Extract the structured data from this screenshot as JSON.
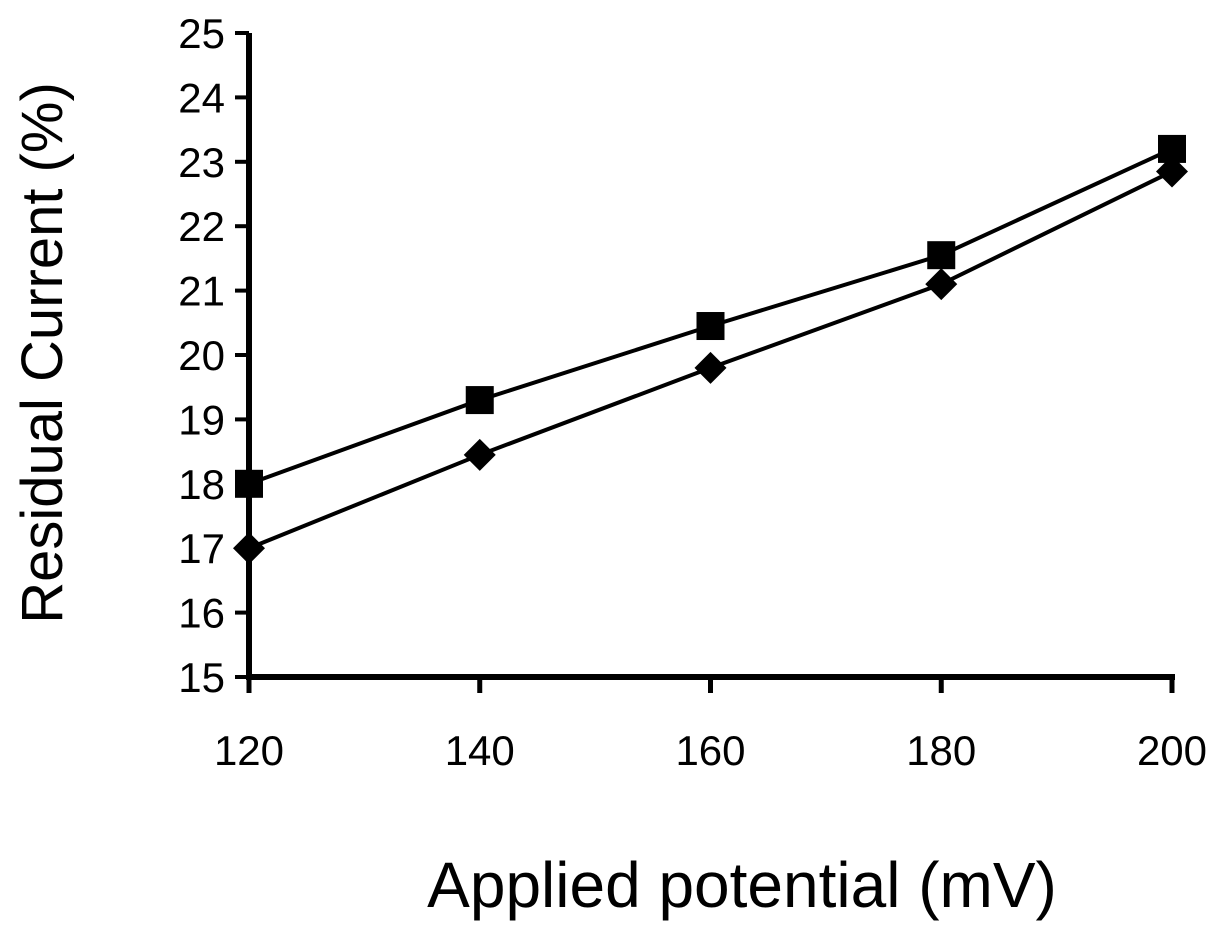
{
  "chart_data": {
    "type": "line",
    "xlabel": "Applied potential (mV)",
    "ylabel": "Residual Current (%)",
    "x": [
      120,
      140,
      160,
      180,
      200
    ],
    "xlim": [
      120,
      200
    ],
    "ylim": [
      15,
      25
    ],
    "xticks": [
      "120",
      "140",
      "160",
      "180",
      "200"
    ],
    "yticks": [
      "15",
      "16",
      "17",
      "18",
      "19",
      "20",
      "21",
      "22",
      "23",
      "24",
      "25"
    ],
    "grid": false,
    "legend": "none",
    "series": [
      {
        "marker": "square",
        "color": "#000000",
        "values": [
          18.0,
          19.3,
          20.45,
          21.55,
          23.2
        ]
      },
      {
        "marker": "diamond",
        "color": "#000000",
        "values": [
          17.0,
          18.45,
          19.8,
          21.1,
          22.85
        ]
      }
    ]
  }
}
